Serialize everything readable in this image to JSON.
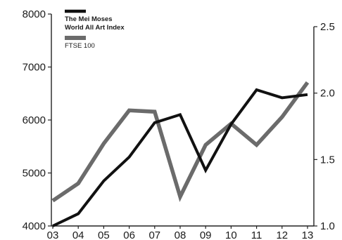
{
  "chart_data": {
    "type": "line",
    "x": [
      "03",
      "04",
      "05",
      "06",
      "07",
      "08",
      "09",
      "10",
      "11",
      "12",
      "13"
    ],
    "series": [
      {
        "name": "The Mei Moses World All Art Index",
        "name_lines": [
          "The Mei Moses",
          "World All Art Index"
        ],
        "axis": "left",
        "color": "#111111",
        "values": [
          4000,
          4230,
          4850,
          5300,
          5950,
          6100,
          5050,
          5920,
          6570,
          6420,
          6480
        ]
      },
      {
        "name": "FTSE 100",
        "name_lines": [
          "FTSE 100"
        ],
        "axis": "right",
        "color": "#6b6b6b",
        "values": [
          1.19,
          1.32,
          1.62,
          1.87,
          1.86,
          1.22,
          1.61,
          1.77,
          1.61,
          1.82,
          2.08
        ]
      }
    ],
    "left_axis": {
      "ticks": [
        "4000",
        "5000",
        "6000",
        "7000",
        "8000"
      ],
      "ylim": [
        4000,
        8000
      ]
    },
    "right_axis": {
      "ticks": [
        "1.0",
        "1.5",
        "2.0",
        "2.5"
      ],
      "ylim": [
        1.0,
        2.5
      ]
    },
    "legend_position": "top-left",
    "grid": false
  }
}
